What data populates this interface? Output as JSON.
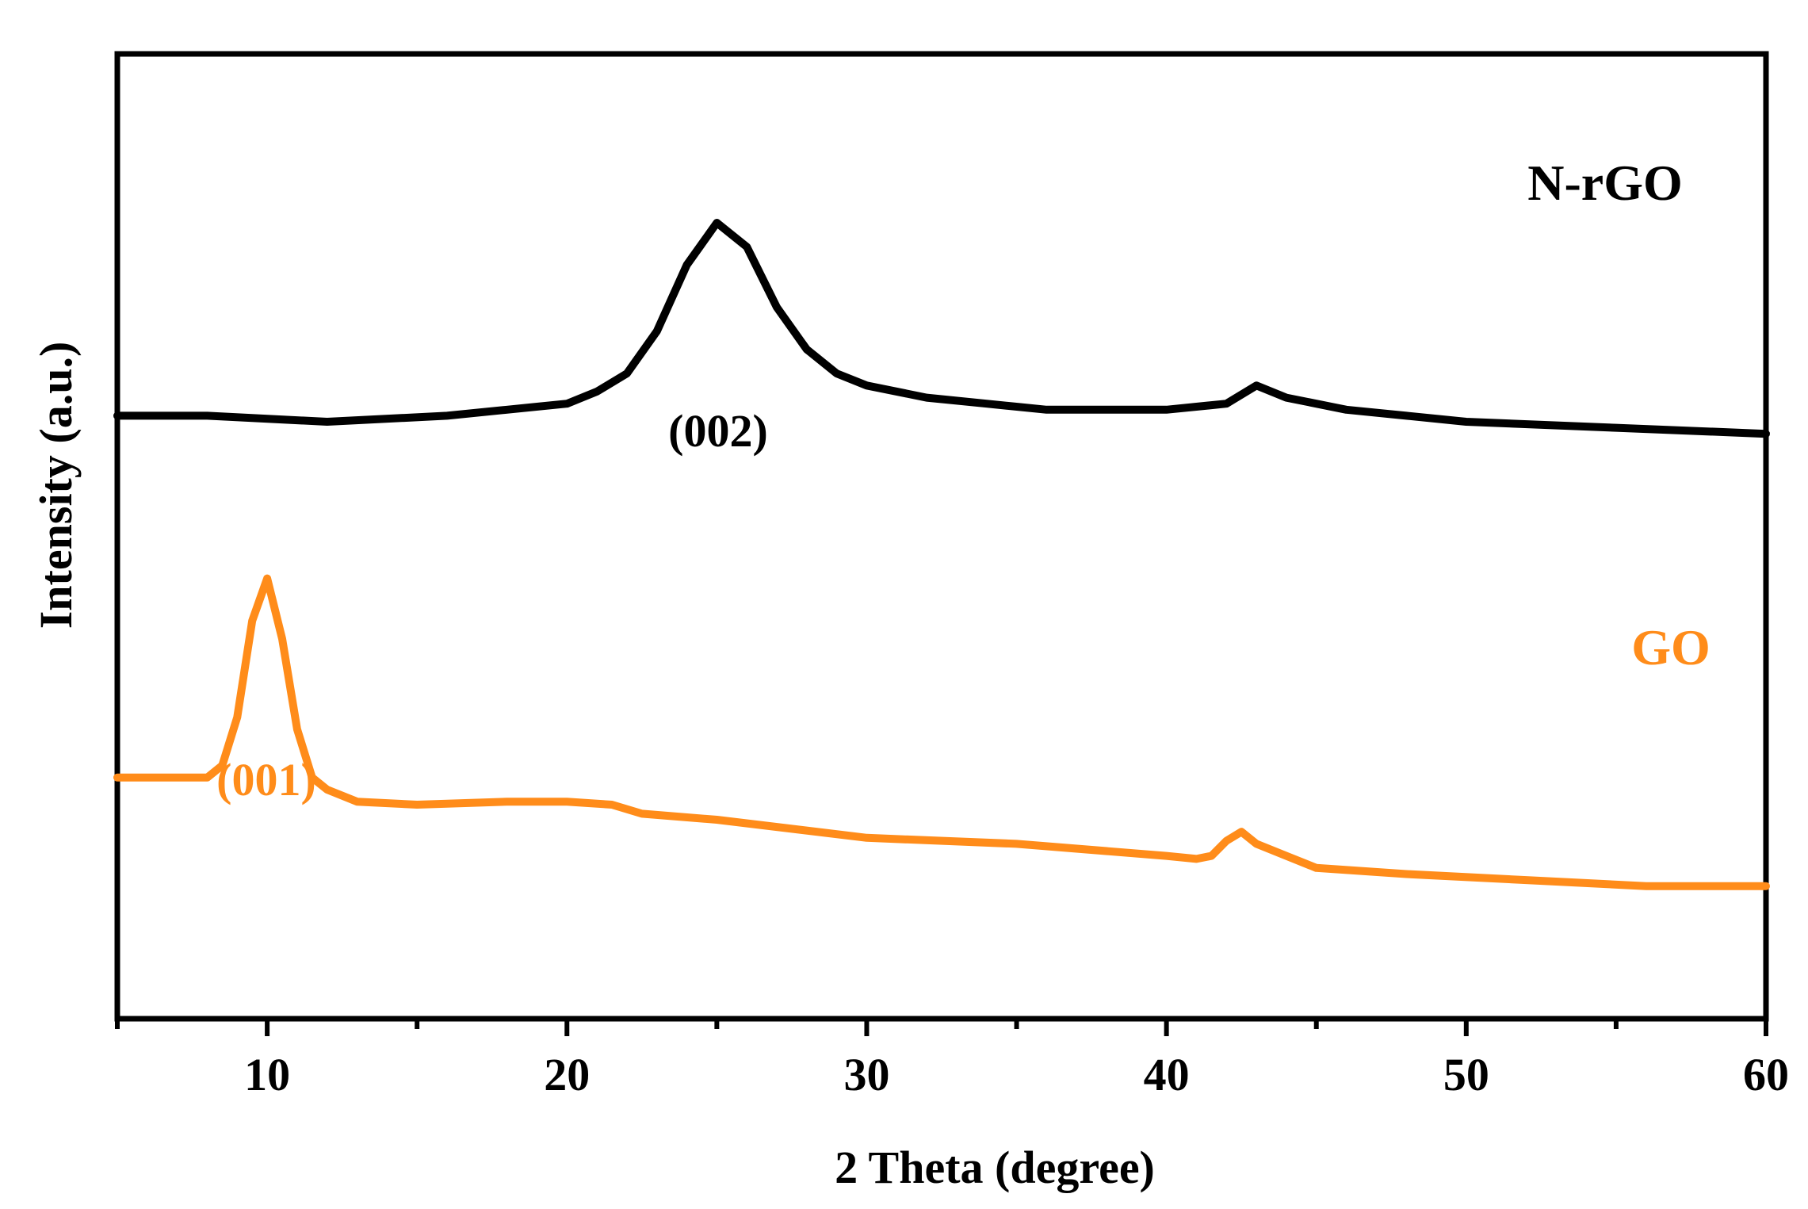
{
  "chart_data": {
    "type": "line",
    "xlabel": "2 Theta (degree)",
    "ylabel": "Intensity (a.u.)",
    "xlim": [
      5,
      60
    ],
    "y_ticks_shown": false,
    "x_ticks": [
      10,
      20,
      30,
      40,
      50,
      60
    ],
    "x_tick_labels": [
      "10",
      "20",
      "30",
      "40",
      "50",
      "60"
    ],
    "grid": false,
    "legend": "none",
    "series": [
      {
        "name": "N-rGO",
        "color": "#000000",
        "x": [
          5,
          8,
          12,
          16,
          18,
          20,
          21,
          22,
          23,
          24,
          25,
          26,
          27,
          28,
          29,
          30,
          32,
          34,
          36,
          38,
          40,
          42,
          43,
          44,
          46,
          48,
          50,
          55,
          60
        ],
        "y": [
          100,
          100,
          99,
          100,
          101,
          102,
          104,
          107,
          114,
          125,
          132,
          128,
          118,
          111,
          107,
          105,
          103,
          102,
          101,
          101,
          101,
          102,
          105,
          103,
          101,
          100,
          99,
          98,
          97
        ]
      },
      {
        "name": "GO",
        "color": "#ff8c1a",
        "x": [
          5,
          8,
          8.5,
          9,
          9.5,
          10,
          10.5,
          11,
          11.5,
          12,
          13,
          15,
          18,
          20,
          21.5,
          22.5,
          25,
          30,
          35,
          40,
          41,
          41.5,
          42,
          42.5,
          43,
          44,
          45,
          48,
          52,
          56,
          60
        ],
        "y": [
          40,
          40,
          42,
          50,
          66,
          73,
          63,
          48,
          40,
          38,
          36,
          35.5,
          36,
          36,
          35.5,
          34,
          33,
          30,
          29,
          27,
          26.5,
          27,
          29.5,
          31,
          29,
          27,
          25,
          24,
          23,
          22,
          22
        ]
      }
    ],
    "annotations": [
      {
        "text": "N-rGO",
        "color": "#000000"
      },
      {
        "text": "GO",
        "color": "#ff8c1a"
      },
      {
        "text": "(002)",
        "x": 25,
        "color": "#000000"
      },
      {
        "text": "(001)",
        "x": 10,
        "color": "#ff8c1a"
      }
    ],
    "y_range_internal": [
      0,
      160
    ]
  }
}
